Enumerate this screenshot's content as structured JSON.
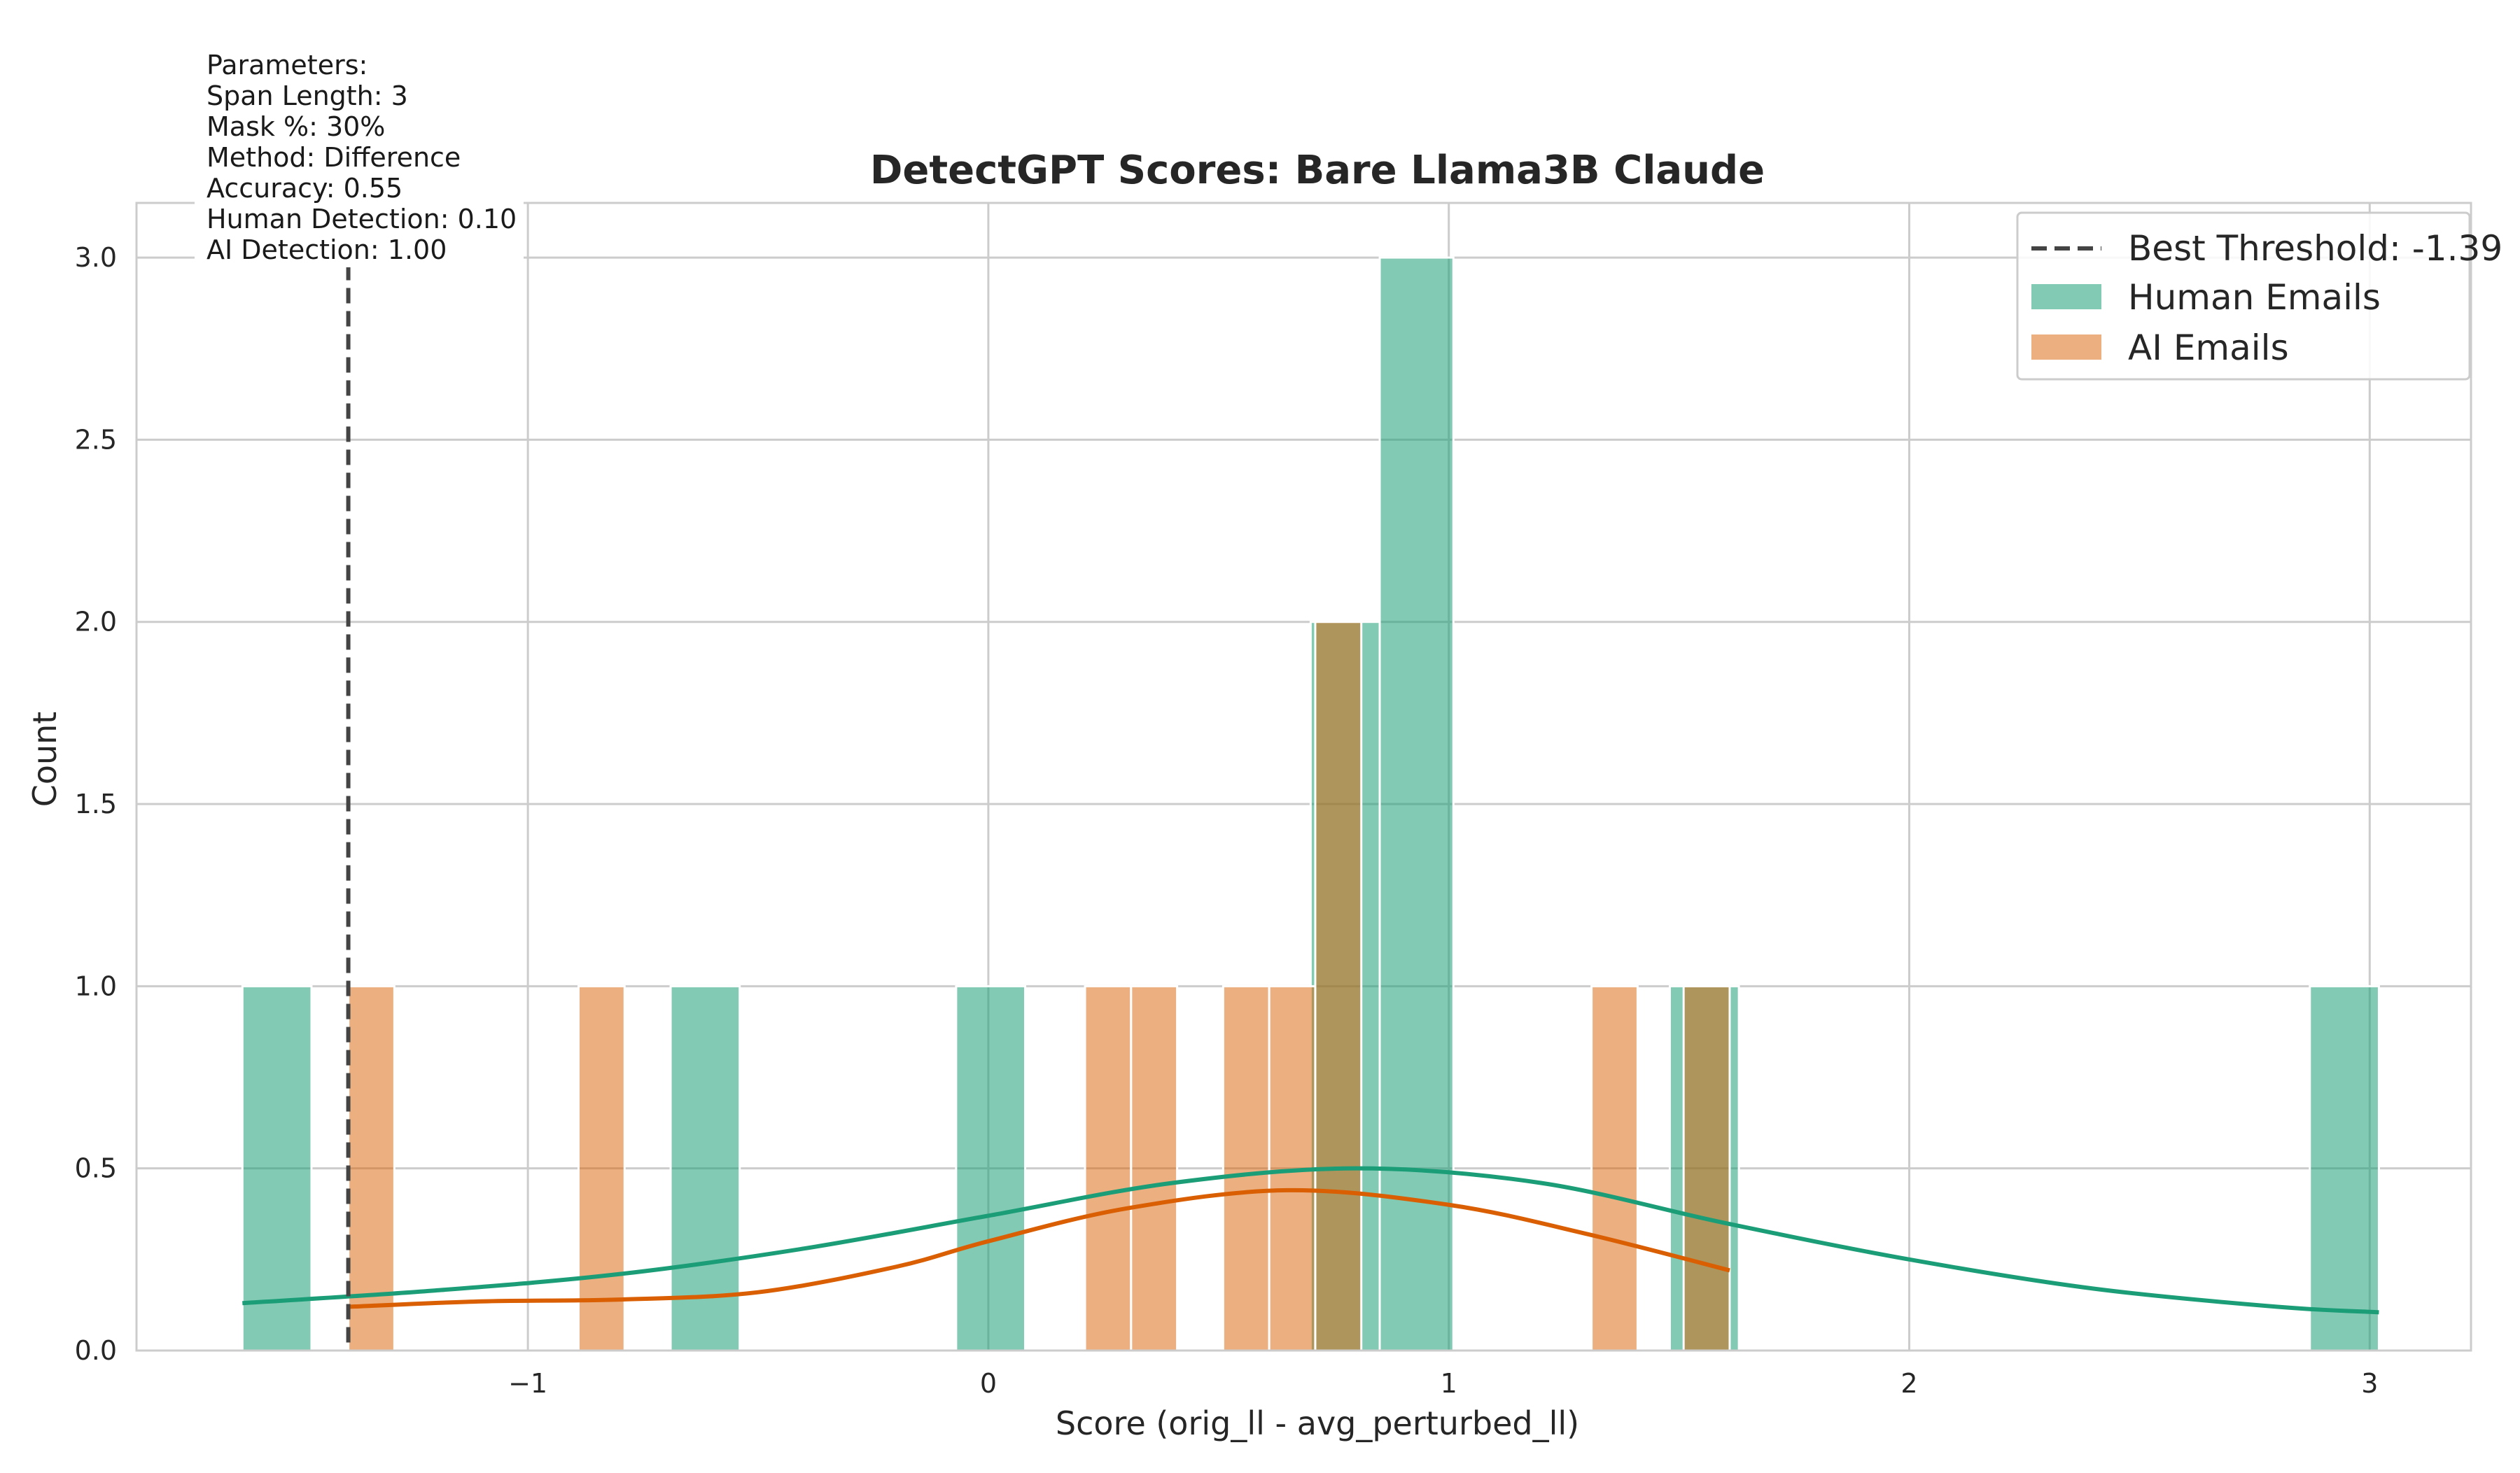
{
  "colors": {
    "human": "#1b9e77",
    "ai": "#d95f02",
    "threshold": "#444444",
    "grid": "#cccccc",
    "frame": "#cccccc"
  },
  "parameters_box": {
    "lines": [
      "Parameters:",
      "Span Length: 3",
      "Mask %: 30%",
      "Method: Difference",
      "Accuracy: 0.55",
      "Human Detection: 0.10",
      "AI Detection: 1.00"
    ]
  },
  "chart_data": {
    "type": "bar",
    "title": "DetectGPT Scores: Bare Llama3B Claude",
    "xlabel": "Score (orig_ll - avg_perturbed_ll)",
    "ylabel": "Count",
    "xlim": [
      -1.85,
      3.22
    ],
    "ylim": [
      0,
      3.15
    ],
    "xticks": [
      -1,
      0,
      1,
      2,
      3
    ],
    "xtick_labels": [
      "−1",
      "0",
      "1",
      "2",
      "3"
    ],
    "yticks": [
      0.0,
      0.5,
      1.0,
      1.5,
      2.0,
      2.5,
      3.0
    ],
    "ytick_labels": [
      "0.0",
      "0.5",
      "1.0",
      "1.5",
      "2.0",
      "2.5",
      "3.0"
    ],
    "grid": true,
    "legend_position": "top-right",
    "threshold": {
      "label": "Best Threshold: -1.39",
      "x": -1.39
    },
    "series": [
      {
        "name": "Human Emails",
        "bins": [
          {
            "x0": -1.62,
            "x1": -1.47,
            "count": 1
          },
          {
            "x0": -0.69,
            "x1": -0.54,
            "count": 1
          },
          {
            "x0": -0.07,
            "x1": 0.08,
            "count": 1
          },
          {
            "x0": 0.7,
            "x1": 0.85,
            "count": 2
          },
          {
            "x0": 0.85,
            "x1": 1.01,
            "count": 3
          },
          {
            "x0": 1.48,
            "x1": 1.63,
            "count": 1
          },
          {
            "x0": 2.87,
            "x1": 3.02,
            "count": 1
          }
        ],
        "kde": {
          "x": [
            -1.62,
            -1.2,
            -0.8,
            -0.4,
            0.0,
            0.4,
            0.8,
            1.2,
            1.6,
            2.0,
            2.4,
            2.8,
            3.02
          ],
          "y": [
            0.13,
            0.165,
            0.21,
            0.28,
            0.37,
            0.46,
            0.5,
            0.46,
            0.35,
            0.25,
            0.17,
            0.12,
            0.105
          ]
        }
      },
      {
        "name": "AI Emails",
        "bins": [
          {
            "x0": -1.39,
            "x1": -1.29,
            "count": 1
          },
          {
            "x0": -0.89,
            "x1": -0.79,
            "count": 1
          },
          {
            "x0": 0.21,
            "x1": 0.31,
            "count": 1
          },
          {
            "x0": 0.31,
            "x1": 0.41,
            "count": 1
          },
          {
            "x0": 0.51,
            "x1": 0.61,
            "count": 1
          },
          {
            "x0": 0.61,
            "x1": 0.71,
            "count": 1
          },
          {
            "x0": 0.71,
            "x1": 0.81,
            "count": 2
          },
          {
            "x0": 1.31,
            "x1": 1.41,
            "count": 1
          },
          {
            "x0": 1.51,
            "x1": 1.61,
            "count": 1
          }
        ],
        "kde": {
          "x": [
            -1.39,
            -1.1,
            -0.8,
            -0.5,
            -0.2,
            0.0,
            0.3,
            0.65,
            1.0,
            1.3,
            1.61
          ],
          "y": [
            0.12,
            0.135,
            0.14,
            0.16,
            0.23,
            0.3,
            0.39,
            0.44,
            0.4,
            0.32,
            0.22
          ]
        }
      }
    ]
  }
}
